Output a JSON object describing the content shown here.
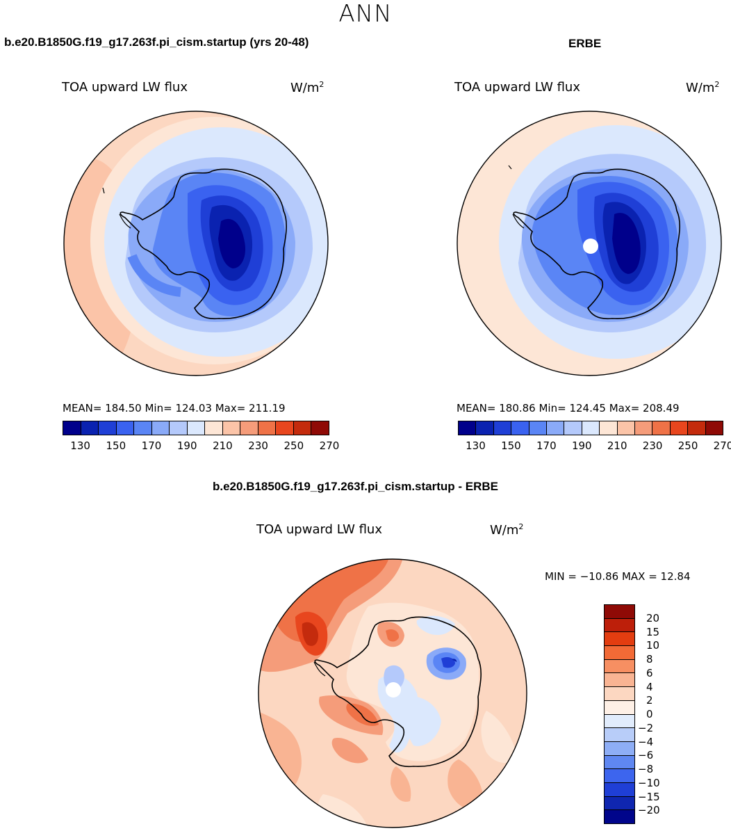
{
  "season": "ANN",
  "panels": {
    "model": {
      "title": "b.e20.B1850G.f19_g17.263f.pi_cism.startup (yrs 20-48)",
      "variable": "TOA upward LW flux",
      "units": "W/m",
      "units_sup": "2",
      "stats": "MEAN= 184.50   Min= 124.03   Max= 211.19"
    },
    "obs": {
      "title": "ERBE",
      "variable": "TOA upward LW flux",
      "units": "W/m",
      "units_sup": "2",
      "stats": "MEAN= 180.86   Min= 124.45   Max= 208.49"
    },
    "diff": {
      "title": "b.e20.B1850G.f19_g17.263f.pi_cism.startup - ERBE",
      "variable": "TOA upward LW flux",
      "units": "W/m",
      "units_sup": "2",
      "stats": "MIN = −10.86 MAX =   12.84"
    }
  },
  "colorbar_abs": {
    "colors": [
      "#00008b",
      "#0a22b0",
      "#1f3fd6",
      "#3a62f0",
      "#5a85f5",
      "#8aaaf8",
      "#b4c9fb",
      "#dbe8fd",
      "#fde6d6",
      "#fbc4a8",
      "#f59c7a",
      "#ef7247",
      "#e8461e",
      "#c42b0d",
      "#8f0a06"
    ],
    "labels": [
      "130",
      "150",
      "170",
      "190",
      "210",
      "230",
      "250",
      "270"
    ]
  },
  "colorbar_diff": {
    "colors": [
      "#8f0a06",
      "#bd1f0a",
      "#e33d10",
      "#f26a36",
      "#f78f62",
      "#f9b493",
      "#fcd7c1",
      "#fef0e6",
      "#e1ecfc",
      "#b8cdf9",
      "#8eaef6",
      "#5f87f1",
      "#3d65ee",
      "#1f3fd6",
      "#0f26b0",
      "#00058b"
    ],
    "labels": [
      "20",
      "15",
      "10",
      "8",
      "6",
      "4",
      "2",
      "0",
      "−2",
      "−4",
      "−6",
      "−8",
      "−10",
      "−15",
      "−20"
    ]
  }
}
